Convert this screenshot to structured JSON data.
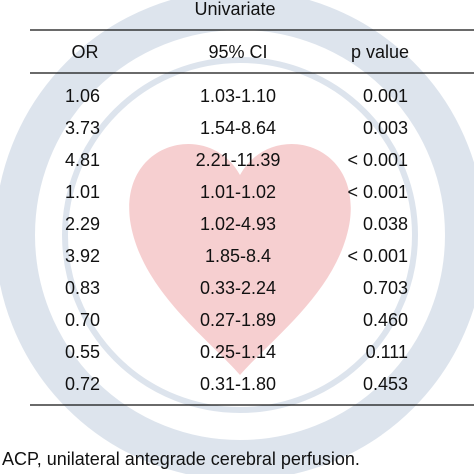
{
  "table": {
    "group_header": "Univariate",
    "columns": [
      "OR",
      "95% CI",
      "p value"
    ],
    "rows": [
      [
        "1.06",
        "1.03-1.10",
        "0.001"
      ],
      [
        "3.73",
        "1.54-8.64",
        "0.003"
      ],
      [
        "4.81",
        "2.21-11.39",
        "< 0.001"
      ],
      [
        "1.01",
        "1.01-1.02",
        "< 0.001"
      ],
      [
        "2.29",
        "1.02-4.93",
        "0.038"
      ],
      [
        "3.92",
        "1.85-8.4",
        "< 0.001"
      ],
      [
        "0.83",
        "0.33-2.24",
        "0.703"
      ],
      [
        "0.70",
        "0.27-1.89",
        "0.460"
      ],
      [
        "0.55",
        "0.25-1.14",
        "0.111"
      ],
      [
        "0.72",
        "0.31-1.80",
        "0.453"
      ]
    ],
    "footnote": "ACP, unilateral antegrade cerebral perfusion."
  }
}
